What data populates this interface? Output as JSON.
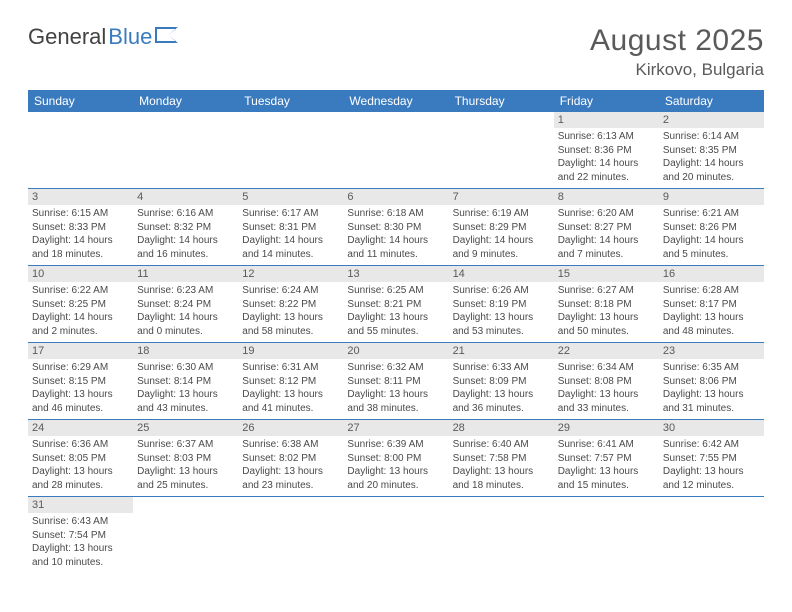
{
  "logo": {
    "text1": "General",
    "text2": "Blue"
  },
  "title": "August 2025",
  "location": "Kirkovo, Bulgaria",
  "colors": {
    "header_bg": "#3a7bbf",
    "header_text": "#ffffff",
    "daynum_bg": "#e8e8e8",
    "text": "#4a4a4a",
    "rule": "#3a7bbf"
  },
  "day_headers": [
    "Sunday",
    "Monday",
    "Tuesday",
    "Wednesday",
    "Thursday",
    "Friday",
    "Saturday"
  ],
  "weeks": [
    [
      {
        "n": "",
        "sr": "",
        "ss": "",
        "dl1": "",
        "dl2": ""
      },
      {
        "n": "",
        "sr": "",
        "ss": "",
        "dl1": "",
        "dl2": ""
      },
      {
        "n": "",
        "sr": "",
        "ss": "",
        "dl1": "",
        "dl2": ""
      },
      {
        "n": "",
        "sr": "",
        "ss": "",
        "dl1": "",
        "dl2": ""
      },
      {
        "n": "",
        "sr": "",
        "ss": "",
        "dl1": "",
        "dl2": ""
      },
      {
        "n": "1",
        "sr": "Sunrise: 6:13 AM",
        "ss": "Sunset: 8:36 PM",
        "dl1": "Daylight: 14 hours",
        "dl2": "and 22 minutes."
      },
      {
        "n": "2",
        "sr": "Sunrise: 6:14 AM",
        "ss": "Sunset: 8:35 PM",
        "dl1": "Daylight: 14 hours",
        "dl2": "and 20 minutes."
      }
    ],
    [
      {
        "n": "3",
        "sr": "Sunrise: 6:15 AM",
        "ss": "Sunset: 8:33 PM",
        "dl1": "Daylight: 14 hours",
        "dl2": "and 18 minutes."
      },
      {
        "n": "4",
        "sr": "Sunrise: 6:16 AM",
        "ss": "Sunset: 8:32 PM",
        "dl1": "Daylight: 14 hours",
        "dl2": "and 16 minutes."
      },
      {
        "n": "5",
        "sr": "Sunrise: 6:17 AM",
        "ss": "Sunset: 8:31 PM",
        "dl1": "Daylight: 14 hours",
        "dl2": "and 14 minutes."
      },
      {
        "n": "6",
        "sr": "Sunrise: 6:18 AM",
        "ss": "Sunset: 8:30 PM",
        "dl1": "Daylight: 14 hours",
        "dl2": "and 11 minutes."
      },
      {
        "n": "7",
        "sr": "Sunrise: 6:19 AM",
        "ss": "Sunset: 8:29 PM",
        "dl1": "Daylight: 14 hours",
        "dl2": "and 9 minutes."
      },
      {
        "n": "8",
        "sr": "Sunrise: 6:20 AM",
        "ss": "Sunset: 8:27 PM",
        "dl1": "Daylight: 14 hours",
        "dl2": "and 7 minutes."
      },
      {
        "n": "9",
        "sr": "Sunrise: 6:21 AM",
        "ss": "Sunset: 8:26 PM",
        "dl1": "Daylight: 14 hours",
        "dl2": "and 5 minutes."
      }
    ],
    [
      {
        "n": "10",
        "sr": "Sunrise: 6:22 AM",
        "ss": "Sunset: 8:25 PM",
        "dl1": "Daylight: 14 hours",
        "dl2": "and 2 minutes."
      },
      {
        "n": "11",
        "sr": "Sunrise: 6:23 AM",
        "ss": "Sunset: 8:24 PM",
        "dl1": "Daylight: 14 hours",
        "dl2": "and 0 minutes."
      },
      {
        "n": "12",
        "sr": "Sunrise: 6:24 AM",
        "ss": "Sunset: 8:22 PM",
        "dl1": "Daylight: 13 hours",
        "dl2": "and 58 minutes."
      },
      {
        "n": "13",
        "sr": "Sunrise: 6:25 AM",
        "ss": "Sunset: 8:21 PM",
        "dl1": "Daylight: 13 hours",
        "dl2": "and 55 minutes."
      },
      {
        "n": "14",
        "sr": "Sunrise: 6:26 AM",
        "ss": "Sunset: 8:19 PM",
        "dl1": "Daylight: 13 hours",
        "dl2": "and 53 minutes."
      },
      {
        "n": "15",
        "sr": "Sunrise: 6:27 AM",
        "ss": "Sunset: 8:18 PM",
        "dl1": "Daylight: 13 hours",
        "dl2": "and 50 minutes."
      },
      {
        "n": "16",
        "sr": "Sunrise: 6:28 AM",
        "ss": "Sunset: 8:17 PM",
        "dl1": "Daylight: 13 hours",
        "dl2": "and 48 minutes."
      }
    ],
    [
      {
        "n": "17",
        "sr": "Sunrise: 6:29 AM",
        "ss": "Sunset: 8:15 PM",
        "dl1": "Daylight: 13 hours",
        "dl2": "and 46 minutes."
      },
      {
        "n": "18",
        "sr": "Sunrise: 6:30 AM",
        "ss": "Sunset: 8:14 PM",
        "dl1": "Daylight: 13 hours",
        "dl2": "and 43 minutes."
      },
      {
        "n": "19",
        "sr": "Sunrise: 6:31 AM",
        "ss": "Sunset: 8:12 PM",
        "dl1": "Daylight: 13 hours",
        "dl2": "and 41 minutes."
      },
      {
        "n": "20",
        "sr": "Sunrise: 6:32 AM",
        "ss": "Sunset: 8:11 PM",
        "dl1": "Daylight: 13 hours",
        "dl2": "and 38 minutes."
      },
      {
        "n": "21",
        "sr": "Sunrise: 6:33 AM",
        "ss": "Sunset: 8:09 PM",
        "dl1": "Daylight: 13 hours",
        "dl2": "and 36 minutes."
      },
      {
        "n": "22",
        "sr": "Sunrise: 6:34 AM",
        "ss": "Sunset: 8:08 PM",
        "dl1": "Daylight: 13 hours",
        "dl2": "and 33 minutes."
      },
      {
        "n": "23",
        "sr": "Sunrise: 6:35 AM",
        "ss": "Sunset: 8:06 PM",
        "dl1": "Daylight: 13 hours",
        "dl2": "and 31 minutes."
      }
    ],
    [
      {
        "n": "24",
        "sr": "Sunrise: 6:36 AM",
        "ss": "Sunset: 8:05 PM",
        "dl1": "Daylight: 13 hours",
        "dl2": "and 28 minutes."
      },
      {
        "n": "25",
        "sr": "Sunrise: 6:37 AM",
        "ss": "Sunset: 8:03 PM",
        "dl1": "Daylight: 13 hours",
        "dl2": "and 25 minutes."
      },
      {
        "n": "26",
        "sr": "Sunrise: 6:38 AM",
        "ss": "Sunset: 8:02 PM",
        "dl1": "Daylight: 13 hours",
        "dl2": "and 23 minutes."
      },
      {
        "n": "27",
        "sr": "Sunrise: 6:39 AM",
        "ss": "Sunset: 8:00 PM",
        "dl1": "Daylight: 13 hours",
        "dl2": "and 20 minutes."
      },
      {
        "n": "28",
        "sr": "Sunrise: 6:40 AM",
        "ss": "Sunset: 7:58 PM",
        "dl1": "Daylight: 13 hours",
        "dl2": "and 18 minutes."
      },
      {
        "n": "29",
        "sr": "Sunrise: 6:41 AM",
        "ss": "Sunset: 7:57 PM",
        "dl1": "Daylight: 13 hours",
        "dl2": "and 15 minutes."
      },
      {
        "n": "30",
        "sr": "Sunrise: 6:42 AM",
        "ss": "Sunset: 7:55 PM",
        "dl1": "Daylight: 13 hours",
        "dl2": "and 12 minutes."
      }
    ],
    [
      {
        "n": "31",
        "sr": "Sunrise: 6:43 AM",
        "ss": "Sunset: 7:54 PM",
        "dl1": "Daylight: 13 hours",
        "dl2": "and 10 minutes."
      },
      {
        "n": "",
        "sr": "",
        "ss": "",
        "dl1": "",
        "dl2": ""
      },
      {
        "n": "",
        "sr": "",
        "ss": "",
        "dl1": "",
        "dl2": ""
      },
      {
        "n": "",
        "sr": "",
        "ss": "",
        "dl1": "",
        "dl2": ""
      },
      {
        "n": "",
        "sr": "",
        "ss": "",
        "dl1": "",
        "dl2": ""
      },
      {
        "n": "",
        "sr": "",
        "ss": "",
        "dl1": "",
        "dl2": ""
      },
      {
        "n": "",
        "sr": "",
        "ss": "",
        "dl1": "",
        "dl2": ""
      }
    ]
  ]
}
